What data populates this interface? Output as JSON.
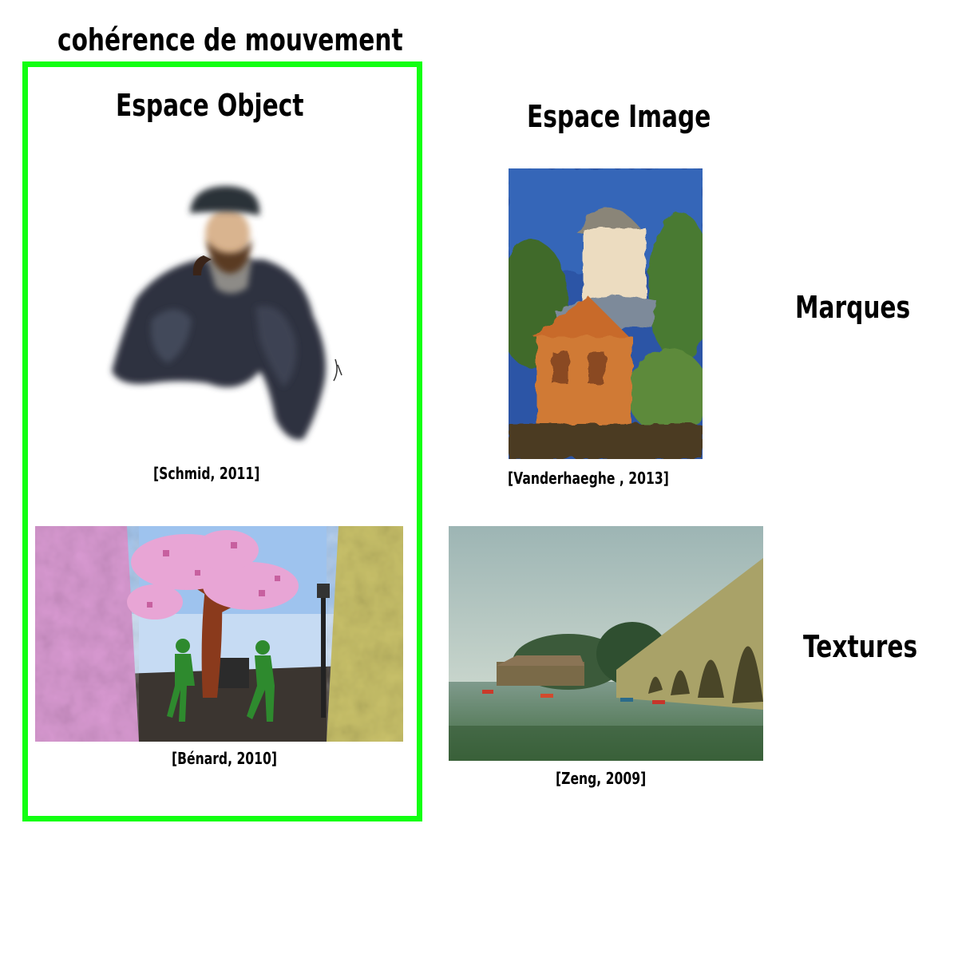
{
  "title": "cohérence de mouvement",
  "columns": {
    "object_space": "Espace Object",
    "image_space": "Espace Image"
  },
  "rows": {
    "marks": "Marques",
    "textures": "Textures"
  },
  "captions": {
    "schmid": "[Schmid, 2011]",
    "benard": "[Bénard, 2010]",
    "vanderhaeghe": "[Vanderhaeghe , 2013]",
    "zeng": "[Zeng, 2009]"
  },
  "colors": {
    "highlight_border": "#11ff11"
  }
}
